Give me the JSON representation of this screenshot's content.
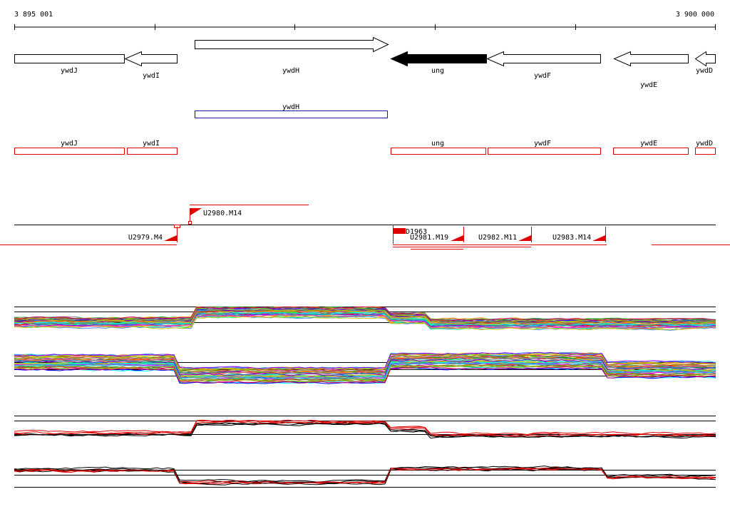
{
  "ruler": {
    "start_label": "3 895 001",
    "end_label": "3 900 000"
  },
  "genes": [
    {
      "name": "ywdJ",
      "strand": "+",
      "filled": false
    },
    {
      "name": "ywdI",
      "strand": "-",
      "filled": false
    },
    {
      "name": "ywdH",
      "strand": "+",
      "filled": false
    },
    {
      "name": "ung",
      "strand": "-",
      "filled": true
    },
    {
      "name": "ywdF",
      "strand": "-",
      "filled": false
    },
    {
      "name": "ywdE",
      "strand": "-",
      "filled": false
    },
    {
      "name": "ywdD",
      "strand": "-",
      "filled": false
    }
  ],
  "blue_track": [
    {
      "name": "ywdH"
    }
  ],
  "red_track": [
    {
      "name": "ywdJ"
    },
    {
      "name": "ywdI"
    },
    {
      "name": "ung"
    },
    {
      "name": "ywdF"
    },
    {
      "name": "ywdE"
    },
    {
      "name": "ywdD"
    }
  ],
  "transcripts": [
    {
      "name": "U2979.M4"
    },
    {
      "name": "U2980.M14"
    },
    {
      "name": "D1963"
    },
    {
      "name": "U2981.M19"
    },
    {
      "name": "U2982.M11"
    },
    {
      "name": "U2983.M14"
    }
  ],
  "colors": {
    "gene_fill": "#000000",
    "blue_box": "#1a1aa0",
    "red_box": "#e00000",
    "transcript": "#e00000"
  }
}
